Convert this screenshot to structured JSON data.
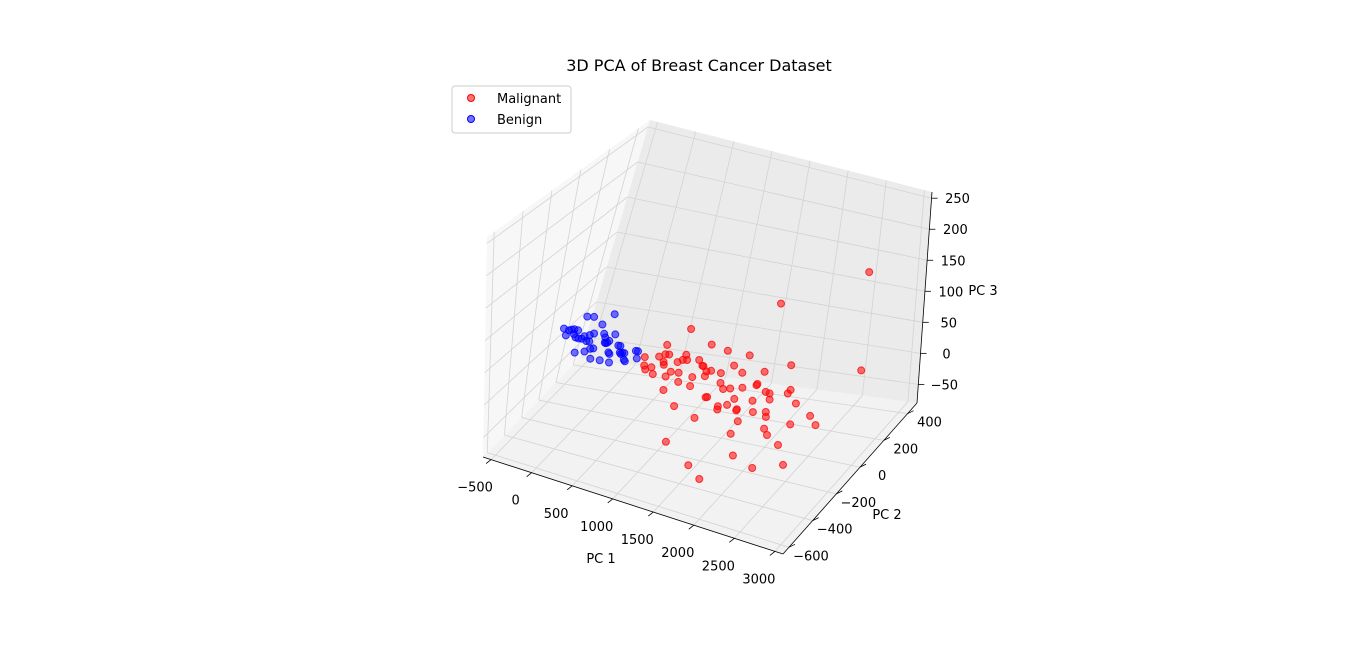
{
  "chart_data": {
    "type": "scatter3d",
    "title": "3D PCA of Breast Cancer Dataset",
    "xlabel": "PC 1",
    "ylabel": "PC 2",
    "zlabel": "PC 3",
    "xlim": [
      -600,
      3100
    ],
    "ylim": [
      -650,
      480
    ],
    "zlim": [
      -80,
      260
    ],
    "xticks": [
      "−500",
      "0",
      "500",
      "1000",
      "1500",
      "2000",
      "2500",
      "3000"
    ],
    "yticks": [
      "−600",
      "−400",
      "−200",
      "0",
      "200",
      "400"
    ],
    "zticks": [
      "−50",
      "0",
      "50",
      "100",
      "150",
      "200",
      "250"
    ],
    "legend": {
      "placement": "top-left",
      "entries": [
        "Malignant",
        "Benign"
      ]
    },
    "grid": true,
    "colors": {
      "Malignant": "#ff0000",
      "Benign": "#0000ff"
    },
    "series": [
      {
        "name": "Malignant",
        "color": "#ff0000",
        "points": [
          [
            3050,
            -600,
            250
          ],
          [
            3000,
            -500,
            150
          ],
          [
            2600,
            350,
            140
          ],
          [
            900,
            100,
            50
          ],
          [
            2000,
            -300,
            -40
          ],
          [
            1500,
            200,
            10
          ],
          [
            1300,
            150,
            20
          ],
          [
            1000,
            0,
            30
          ],
          [
            900,
            -50,
            10
          ],
          [
            1100,
            100,
            0
          ],
          [
            1200,
            -100,
            5
          ],
          [
            1600,
            -150,
            -10
          ],
          [
            1800,
            50,
            0
          ],
          [
            1400,
            -200,
            -20
          ],
          [
            1700,
            -50,
            -25
          ],
          [
            2200,
            -150,
            -30
          ],
          [
            1900,
            -250,
            -20
          ],
          [
            2100,
            100,
            -15
          ],
          [
            700,
            50,
            15
          ],
          [
            800,
            0,
            25
          ],
          [
            600,
            -50,
            5
          ],
          [
            650,
            100,
            20
          ],
          [
            750,
            -100,
            10
          ],
          [
            850,
            150,
            -5
          ],
          [
            950,
            -150,
            0
          ],
          [
            1050,
            200,
            15
          ],
          [
            1150,
            -200,
            -10
          ],
          [
            1250,
            50,
            5
          ],
          [
            1350,
            -50,
            -15
          ],
          [
            1450,
            100,
            10
          ],
          [
            1550,
            0,
            -5
          ],
          [
            1650,
            -100,
            -10
          ],
          [
            1750,
            150,
            0
          ],
          [
            1850,
            -150,
            -20
          ],
          [
            1950,
            50,
            -10
          ],
          [
            2050,
            -50,
            -25
          ],
          [
            2300,
            -350,
            -40
          ],
          [
            2400,
            -200,
            -30
          ],
          [
            2500,
            0,
            -20
          ],
          [
            1600,
            -400,
            -50
          ],
          [
            1200,
            -300,
            -45
          ],
          [
            1800,
            -450,
            -55
          ],
          [
            2700,
            -100,
            -10
          ],
          [
            2800,
            200,
            20
          ],
          [
            2600,
            -300,
            -35
          ],
          [
            500,
            20,
            10
          ],
          [
            550,
            -20,
            5
          ],
          [
            620,
            60,
            8
          ],
          [
            680,
            -60,
            12
          ],
          [
            720,
            30,
            3
          ],
          [
            780,
            -30,
            18
          ],
          [
            820,
            80,
            2
          ],
          [
            880,
            -80,
            7
          ],
          [
            920,
            40,
            14
          ],
          [
            980,
            -40,
            9
          ],
          [
            1020,
            120,
            4
          ],
          [
            1080,
            -120,
            11
          ],
          [
            1120,
            70,
            6
          ],
          [
            1180,
            -70,
            13
          ],
          [
            1220,
            20,
            1
          ],
          [
            1280,
            -20,
            16
          ],
          [
            1320,
            90,
            -3
          ],
          [
            1380,
            -90,
            -8
          ],
          [
            1420,
            10,
            -2
          ],
          [
            1480,
            -10,
            -6
          ],
          [
            1520,
            130,
            -4
          ],
          [
            1580,
            -130,
            -9
          ],
          [
            1620,
            60,
            -12
          ],
          [
            1680,
            -60,
            -7
          ],
          [
            1720,
            110,
            -14
          ],
          [
            1780,
            -110,
            -11
          ],
          [
            1820,
            0,
            -16
          ],
          [
            1880,
            70,
            -13
          ],
          [
            1920,
            -70,
            -18
          ],
          [
            1980,
            30,
            -15
          ],
          [
            2020,
            -30,
            -22
          ],
          [
            2080,
            140,
            -17
          ],
          [
            2150,
            -140,
            -24
          ],
          [
            2250,
            60,
            -19
          ],
          [
            2350,
            -60,
            -26
          ]
        ]
      },
      {
        "name": "Benign",
        "color": "#0000ff",
        "points": [
          [
            -450,
            50,
            20
          ],
          [
            -400,
            30,
            25
          ],
          [
            -350,
            10,
            30
          ],
          [
            -300,
            -10,
            22
          ],
          [
            -250,
            40,
            18
          ],
          [
            -200,
            20,
            15
          ],
          [
            -150,
            0,
            28
          ],
          [
            -100,
            -20,
            12
          ],
          [
            -50,
            60,
            24
          ],
          [
            0,
            35,
            16
          ],
          [
            50,
            15,
            20
          ],
          [
            100,
            -5,
            10
          ],
          [
            150,
            45,
            14
          ],
          [
            200,
            25,
            8
          ],
          [
            250,
            5,
            12
          ],
          [
            300,
            -15,
            6
          ],
          [
            350,
            55,
            10
          ],
          [
            400,
            30,
            4
          ],
          [
            -480,
            20,
            26
          ],
          [
            -420,
            -5,
            21
          ],
          [
            -380,
            45,
            17
          ],
          [
            -320,
            25,
            27
          ],
          [
            -280,
            5,
            19
          ],
          [
            -220,
            -15,
            23
          ],
          [
            -180,
            35,
            13
          ],
          [
            -120,
            15,
            29
          ],
          [
            -80,
            -5,
            11
          ],
          [
            -20,
            50,
            21
          ],
          [
            20,
            25,
            17
          ],
          [
            80,
            5,
            25
          ],
          [
            120,
            -10,
            9
          ],
          [
            180,
            40,
            15
          ],
          [
            220,
            20,
            7
          ],
          [
            280,
            0,
            13
          ],
          [
            320,
            -20,
            5
          ],
          [
            380,
            50,
            11
          ],
          [
            -300,
            80,
            40
          ],
          [
            -200,
            60,
            45
          ],
          [
            -100,
            70,
            35
          ],
          [
            0,
            90,
            50
          ],
          [
            100,
            40,
            30
          ],
          [
            -250,
            -40,
            5
          ],
          [
            -150,
            -30,
            8
          ],
          [
            -50,
            -50,
            3
          ],
          [
            50,
            -40,
            2
          ],
          [
            150,
            -30,
            0
          ]
        ]
      }
    ]
  }
}
